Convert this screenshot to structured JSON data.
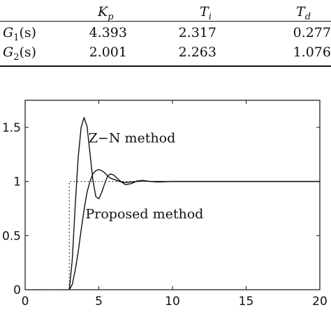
{
  "table": {
    "headers": [
      "K",
      "p",
      "T",
      "i",
      "T",
      "d"
    ],
    "rows": [
      {
        "label": "G",
        "sub": "1",
        "arg": "(s)",
        "values": [
          "4.393",
          "2.317",
          "0.277"
        ]
      },
      {
        "label": "G",
        "sub": "2",
        "arg": "(s)",
        "values": [
          "2.001",
          "2.263",
          "1.076"
        ]
      }
    ]
  },
  "chart_data": {
    "type": "line",
    "title": "",
    "xlabel": "",
    "ylabel": "",
    "xlim": [
      0,
      20
    ],
    "ylim": [
      0,
      1.75
    ],
    "x_ticks": [
      0,
      5,
      10,
      15,
      20
    ],
    "x_tick_labels": [
      "0",
      "5",
      "10",
      "15",
      "20"
    ],
    "y_ticks": [
      0,
      0.5,
      1,
      1.5
    ],
    "y_tick_labels": [
      "0",
      "0.5",
      "1",
      "1.5"
    ],
    "grid": false,
    "legend": "none",
    "annotations": [
      {
        "text": "Z−N method",
        "x": 4.3,
        "y": 1.36
      },
      {
        "text": "Proposed method",
        "x": 4.1,
        "y": 0.66
      }
    ],
    "series": [
      {
        "style": "dotted",
        "x": [
          0,
          3.0,
          3.0,
          20
        ],
        "y": [
          0,
          0,
          1,
          1
        ]
      },
      {
        "style": "solid",
        "x": [
          3.0,
          3.2,
          3.4,
          3.6,
          3.8,
          4.0,
          4.2,
          4.4,
          4.6,
          4.8,
          5.0,
          5.2,
          5.4,
          5.6,
          5.8,
          6.0,
          6.4,
          6.8,
          7.2,
          7.6,
          8.0,
          8.5,
          9.0,
          10.0,
          12.0,
          15.0,
          20.0
        ],
        "y": [
          0.0,
          0.28,
          0.78,
          1.22,
          1.5,
          1.59,
          1.51,
          1.26,
          1.01,
          0.86,
          0.84,
          0.9,
          0.98,
          1.05,
          1.07,
          1.06,
          1.01,
          0.97,
          0.98,
          1.005,
          1.01,
          1.0,
          0.995,
          1.0,
          1.0,
          1.0,
          1.0
        ]
      },
      {
        "style": "solid",
        "x": [
          3.0,
          3.2,
          3.4,
          3.6,
          3.8,
          4.0,
          4.2,
          4.4,
          4.6,
          4.8,
          5.0,
          5.2,
          5.4,
          5.6,
          5.8,
          6.0,
          6.4,
          6.8,
          7.2,
          7.6,
          8.0,
          8.5,
          9.0,
          10.0,
          12.0,
          15.0,
          20.0
        ],
        "y": [
          0.0,
          0.05,
          0.18,
          0.35,
          0.55,
          0.74,
          0.9,
          1.0,
          1.07,
          1.1,
          1.11,
          1.1,
          1.08,
          1.05,
          1.03,
          1.02,
          1.0,
          0.99,
          0.995,
          1.0,
          1.005,
          1.0,
          1.0,
          1.0,
          1.0,
          1.0,
          1.0
        ]
      }
    ]
  }
}
